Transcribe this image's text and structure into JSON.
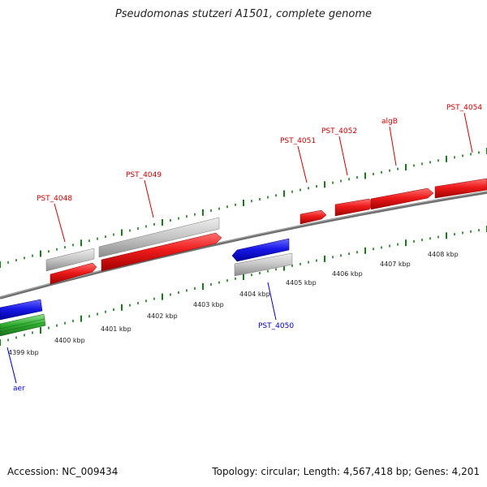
{
  "title": "Pseudomonas stutzeri A1501, complete genome",
  "footer": {
    "accession": "Accession: NC_009434",
    "stats": "Topology: circular; Length: 4,567,418 bp; Genes: 4,201"
  },
  "colors": {
    "backbone": "#7f7f7f",
    "tick": "#1b7a1b",
    "forward_gene": "#e01010",
    "reverse_gene": "#1414e0",
    "unannotated": "#c0c0c0",
    "rna_gene": "#2eaa2e",
    "forward_label": "#cc0000",
    "reverse_label": "#0000cc"
  },
  "scale": {
    "unit": "kbp",
    "labels": [
      "4399 kbp",
      "4400 kbp",
      "4401 kbp",
      "4402 kbp",
      "4403 kbp",
      "4404 kbp",
      "4405 kbp",
      "4406 kbp",
      "4407 kbp",
      "4408 kbp"
    ]
  },
  "genes": [
    {
      "id": "aer",
      "label": "aer",
      "strand": "reverse",
      "color": "blue"
    },
    {
      "id": "PST_4048",
      "label": "PST_4048",
      "strand": "forward",
      "color": "red"
    },
    {
      "id": "PST_4049",
      "label": "PST_4049",
      "strand": "forward",
      "color": "red"
    },
    {
      "id": "PST_4050",
      "label": "PST_4050",
      "strand": "reverse",
      "color": "blue"
    },
    {
      "id": "PST_4051",
      "label": "PST_4051",
      "strand": "forward",
      "color": "red"
    },
    {
      "id": "PST_4052",
      "label": "PST_4052",
      "strand": "forward",
      "color": "red"
    },
    {
      "id": "algB",
      "label": "algB",
      "strand": "forward",
      "color": "red"
    },
    {
      "id": "PST_4054",
      "label": "PST_4054",
      "strand": "forward",
      "color": "red"
    }
  ]
}
